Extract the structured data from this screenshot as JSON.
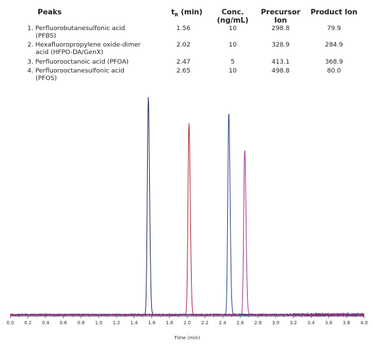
{
  "table": {
    "headers": {
      "peaks": "Peaks",
      "tr_main": "t",
      "tr_sub": "R",
      "tr_unit": " (min)",
      "conc_line1": "Conc.",
      "conc_line2": "(ng/mL)",
      "precursor_line1": "Precursor",
      "precursor_line2": "Ion",
      "product": "Product Ion"
    },
    "rows": [
      {
        "name_line1": "1. Perfluorobutanesulfonic acid",
        "name_line2": "(PFBS)",
        "tr": "1.56",
        "conc": "10",
        "precursor": "298.8",
        "product": "79.9"
      },
      {
        "name_line1": "2. Hexafluoropropylene oxide-dimer",
        "name_line2": "acid (HFPO-DA/GenX)",
        "tr": "2.02",
        "conc": "10",
        "precursor": "328.9",
        "product": "284.9"
      },
      {
        "name_line1": "3. Perfluorooctanoic acid (PFOA)",
        "name_line2": "",
        "tr": "2.47",
        "conc": "5",
        "precursor": "413.1",
        "product": "368.9"
      },
      {
        "name_line1": "4. Perfluorooctanesulfonic acid",
        "name_line2": "(PFOS)",
        "tr": "2.65",
        "conc": "10",
        "precursor": "498.8",
        "product": "80.0"
      }
    ]
  },
  "chart_data": {
    "type": "line",
    "xlabel": "Time (min)",
    "ylabel": "",
    "xlim": [
      0.0,
      4.0
    ],
    "ylim": [
      0,
      1.0
    ],
    "xticks": [
      "0.0",
      "0.2",
      "0.4",
      "0.6",
      "0.8",
      "1.0",
      "1.2",
      "1.4",
      "1.6",
      "1.8",
      "2.0",
      "2.2",
      "2.4",
      "2.6",
      "2.8",
      "3.0",
      "3.2",
      "3.4",
      "3.6",
      "3.8",
      "4.0"
    ],
    "grid": false,
    "series": [
      {
        "peak_time": 1.56,
        "relative_height": 1.0,
        "color": "#1f2a5a"
      },
      {
        "peak_time": 2.02,
        "relative_height": 0.88,
        "color": "#b0243a"
      },
      {
        "peak_time": 2.47,
        "relative_height": 0.93,
        "color": "#2a3f8c"
      },
      {
        "peak_time": 2.65,
        "relative_height": 0.76,
        "color": "#a0308f"
      }
    ]
  }
}
